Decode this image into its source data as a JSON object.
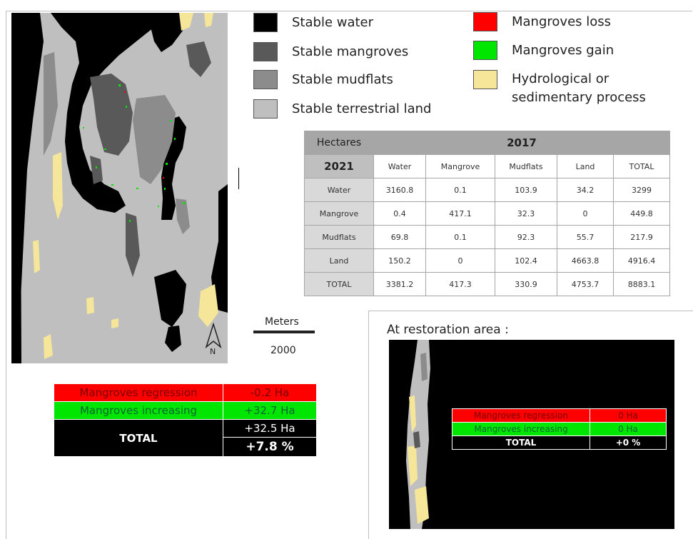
{
  "legend": {
    "stable_water": "Stable water",
    "stable_mangroves": "Stable mangroves",
    "stable_mudflats": "Stable mudflats",
    "stable_land": "Stable terrestrial land",
    "mangroves_loss": "Mangroves loss",
    "mangroves_gain": "Mangroves gain",
    "process_line1": "Hydrological or",
    "process_line2": "sedimentary process"
  },
  "colors": {
    "stable_water": "#000000",
    "stable_mangroves": "#595959",
    "stable_mudflats": "#8c8c8c",
    "stable_land": "#bfbfbf",
    "mangroves_loss": "#ff0000",
    "mangroves_gain": "#00e600",
    "process": "#f5e699"
  },
  "matrix": {
    "corner": "Hectares",
    "col_year": "2017",
    "row_year": "2021",
    "columns": [
      "Water",
      "Mangrove",
      "Mudflats",
      "Land",
      "TOTAL"
    ],
    "rows": [
      {
        "label": "Water",
        "values": [
          "3160.8",
          "0.1",
          "103.9",
          "34.2",
          "3299"
        ]
      },
      {
        "label": "Mangrove",
        "values": [
          "0.4",
          "417.1",
          "32.3",
          "0",
          "449.8"
        ]
      },
      {
        "label": "Mudflats",
        "values": [
          "69.8",
          "0.1",
          "92.3",
          "55.7",
          "217.9"
        ]
      },
      {
        "label": "Land",
        "values": [
          "150.2",
          "0",
          "102.4",
          "4663.8",
          "4916.4"
        ]
      },
      {
        "label": "TOTAL",
        "values": [
          "3381.2",
          "417.3",
          "330.9",
          "4753.7",
          "8883.1"
        ]
      }
    ]
  },
  "scale": {
    "unit": "Meters",
    "value": "2000"
  },
  "north": "N",
  "summary": {
    "regression_label": "Mangroves regression",
    "regression_value": "-0.2 Ha",
    "increasing_label": "Mangroves increasing",
    "increasing_value": "+32.7 Ha",
    "total_label": "TOTAL",
    "total_ha": "+32.5 Ha",
    "total_pct": "+7.8 %"
  },
  "restoration": {
    "title": "At restoration area :",
    "regression_label": "Mangroves regression",
    "regression_value": "0 Ha",
    "increasing_label": "Mangroves increasing",
    "increasing_value": "0 Ha",
    "total_label": "TOTAL",
    "total_value": "+0 %"
  }
}
